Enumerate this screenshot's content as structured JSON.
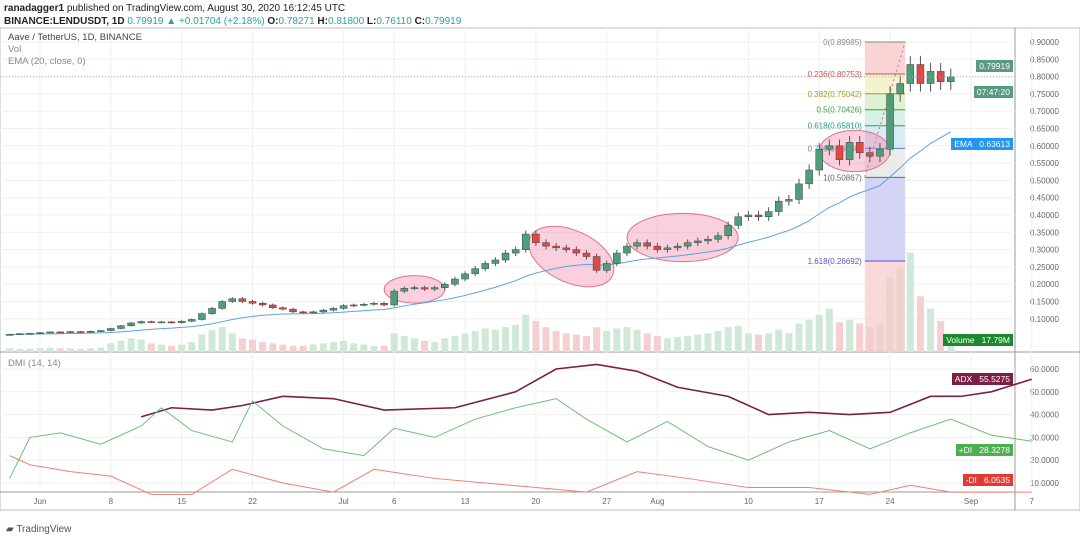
{
  "header": {
    "publisher": "ranadagger1",
    "published_text": "published on TradingView.com, August 30, 2020 16:12:45 UTC",
    "symbol": "BINANCE:LENDUSDT, 1D",
    "last": "0.79919",
    "change": "+0.01704 (+2.18%)",
    "o_label": "O:",
    "o": "0.78271",
    "h_label": "H:",
    "h": "0.81800",
    "l_label": "L:",
    "l": "0.76110",
    "c_label": "C:",
    "c": "0.79919"
  },
  "legend": {
    "title": "Aave / TetherUS, 1D, BINANCE",
    "vol": "Vol",
    "ema": "EMA (20, close, 0)",
    "dmi": "DMI (14, 14)"
  },
  "tags": {
    "price": "0.79919",
    "countdown": "07:47:20",
    "ema_label": "EMA",
    "ema": "0.63613",
    "volume_label": "Volume",
    "volume": "17.79M",
    "adx_label": "ADX",
    "adx": "55.5275",
    "pdi_label": "+DI",
    "pdi": "28.3278",
    "mdi_label": "-DI",
    "mdi": "6.0535"
  },
  "footer": {
    "brand": "TradingView"
  },
  "colors": {
    "up": "#4e9e7a",
    "down": "#e04848",
    "ema": "#5aa3e0",
    "adx": "#7b1f45",
    "pdi": "#6cc070",
    "mdi": "#f08070"
  },
  "chart_data": [
    {
      "type": "candlestick",
      "start_date": "2020-05-29",
      "end_date": "2020-08-30",
      "close": [
        0.055,
        0.057,
        0.058,
        0.06,
        0.062,
        0.061,
        0.063,
        0.062,
        0.064,
        0.066,
        0.072,
        0.08,
        0.088,
        0.092,
        0.09,
        0.091,
        0.089,
        0.093,
        0.098,
        0.115,
        0.13,
        0.15,
        0.158,
        0.15,
        0.145,
        0.14,
        0.132,
        0.128,
        0.12,
        0.118,
        0.12,
        0.125,
        0.13,
        0.138,
        0.14,
        0.142,
        0.145,
        0.14,
        0.18,
        0.188,
        0.19,
        0.186,
        0.19,
        0.2,
        0.215,
        0.23,
        0.245,
        0.26,
        0.27,
        0.29,
        0.3,
        0.345,
        0.32,
        0.31,
        0.305,
        0.3,
        0.29,
        0.28,
        0.24,
        0.26,
        0.29,
        0.31,
        0.32,
        0.31,
        0.3,
        0.305,
        0.31,
        0.32,
        0.325,
        0.33,
        0.34,
        0.37,
        0.395,
        0.4,
        0.395,
        0.41,
        0.44,
        0.445,
        0.49,
        0.53,
        0.59,
        0.6,
        0.56,
        0.61,
        0.58,
        0.57,
        0.59,
        0.75,
        0.78,
        0.835,
        0.78,
        0.815,
        0.785,
        0.79919
      ],
      "volume_m": [
        6,
        5,
        5,
        6,
        7,
        6,
        6,
        5,
        6,
        7,
        14,
        18,
        22,
        20,
        14,
        12,
        10,
        12,
        16,
        28,
        35,
        40,
        30,
        22,
        20,
        16,
        14,
        12,
        10,
        10,
        12,
        14,
        16,
        18,
        14,
        12,
        10,
        10,
        30,
        26,
        22,
        18,
        16,
        22,
        26,
        30,
        34,
        38,
        36,
        40,
        44,
        60,
        50,
        40,
        34,
        30,
        28,
        26,
        40,
        34,
        38,
        40,
        36,
        30,
        26,
        22,
        24,
        26,
        28,
        30,
        34,
        40,
        42,
        30,
        28,
        30,
        36,
        30,
        46,
        52,
        60,
        70,
        48,
        52,
        46,
        40,
        44,
        120,
        135,
        160,
        90,
        70,
        50,
        17.79
      ],
      "price_axis": {
        "min": 0.05,
        "max": 0.9,
        "ticks": [
          "0.90000",
          "0.85000",
          "0.80000",
          "0.75000",
          "0.70000",
          "0.65000",
          "0.60000",
          "0.55000",
          "0.50000",
          "0.45000",
          "0.40000",
          "0.35000",
          "0.30000",
          "0.25000",
          "0.20000",
          "0.15000",
          "0.10000"
        ]
      },
      "fib": [
        {
          "level": "0",
          "price": 0.89985
        },
        {
          "level": "0.236",
          "price": 0.80753
        },
        {
          "level": "0.382",
          "price": 0.75042
        },
        {
          "level": "0.5",
          "price": 0.70426
        },
        {
          "level": "0.618",
          "price": 0.6581
        },
        {
          "level": "0.786",
          "price": 0.5924
        },
        {
          "level": "1",
          "price": 0.50867
        },
        {
          "level": "1.618",
          "price": 0.26692
        }
      ],
      "fib_labels": [
        "0(0.89985)",
        "0.236(0.80753)",
        "0.382(0.75042)",
        "0.5(0.70426)",
        "0.618(0.65810)",
        "0.786(0.59240)",
        "1(0.50867)",
        "1.618(0.26692)"
      ],
      "highlights": [
        {
          "from": "2020-07-06",
          "to": "2020-07-10"
        },
        {
          "from": "2020-07-20",
          "to": "2020-07-27"
        },
        {
          "from": "2020-07-30",
          "to": "2020-08-08"
        },
        {
          "from": "2020-08-18",
          "to": "2020-08-23"
        }
      ]
    },
    {
      "type": "line",
      "title": "DMI (14, 14)",
      "yaxis": {
        "min": 0,
        "max": 65,
        "ticks": [
          "60.0000",
          "50.0000",
          "40.0000",
          "30.0000",
          "20.0000",
          "10.0000"
        ]
      },
      "series": [
        {
          "name": "ADX",
          "points": [
            [
              "2020-06-11",
              39
            ],
            [
              "2020-06-14",
              43
            ],
            [
              "2020-06-18",
              42
            ],
            [
              "2020-06-21",
              44
            ],
            [
              "2020-06-25",
              48
            ],
            [
              "2020-06-30",
              47
            ],
            [
              "2020-07-05",
              42
            ],
            [
              "2020-07-12",
              43
            ],
            [
              "2020-07-18",
              50
            ],
            [
              "2020-07-22",
              60
            ],
            [
              "2020-07-26",
              62
            ],
            [
              "2020-07-30",
              59
            ],
            [
              "2020-08-03",
              52
            ],
            [
              "2020-08-08",
              48
            ],
            [
              "2020-08-12",
              40
            ],
            [
              "2020-08-16",
              41
            ],
            [
              "2020-08-20",
              40
            ],
            [
              "2020-08-24",
              41
            ],
            [
              "2020-08-28",
              48
            ],
            [
              "2020-08-31",
              48
            ],
            [
              "2020-09-03",
              50
            ],
            [
              "2020-09-07",
              55.5
            ]
          ]
        },
        {
          "name": "+DI",
          "points": [
            [
              "2020-05-29",
              12
            ],
            [
              "2020-05-31",
              30
            ],
            [
              "2020-06-03",
              32
            ],
            [
              "2020-06-07",
              27
            ],
            [
              "2020-06-11",
              35
            ],
            [
              "2020-06-13",
              43
            ],
            [
              "2020-06-16",
              33
            ],
            [
              "2020-06-20",
              28
            ],
            [
              "2020-06-22",
              46
            ],
            [
              "2020-06-25",
              35
            ],
            [
              "2020-06-29",
              25
            ],
            [
              "2020-07-03",
              22
            ],
            [
              "2020-07-06",
              34
            ],
            [
              "2020-07-10",
              30
            ],
            [
              "2020-07-14",
              38
            ],
            [
              "2020-07-18",
              43
            ],
            [
              "2020-07-22",
              47
            ],
            [
              "2020-07-25",
              38
            ],
            [
              "2020-07-29",
              28
            ],
            [
              "2020-08-02",
              37
            ],
            [
              "2020-08-06",
              26
            ],
            [
              "2020-08-10",
              20
            ],
            [
              "2020-08-14",
              28
            ],
            [
              "2020-08-18",
              33
            ],
            [
              "2020-08-22",
              25
            ],
            [
              "2020-08-26",
              32
            ],
            [
              "2020-08-30",
              38
            ],
            [
              "2020-09-03",
              31
            ],
            [
              "2020-09-07",
              28.3
            ]
          ]
        },
        {
          "name": "-DI",
          "points": [
            [
              "2020-05-29",
              22
            ],
            [
              "2020-05-31",
              18
            ],
            [
              "2020-06-04",
              15
            ],
            [
              "2020-06-08",
              13
            ],
            [
              "2020-06-12",
              5
            ],
            [
              "2020-06-16",
              5
            ],
            [
              "2020-06-20",
              16
            ],
            [
              "2020-06-25",
              10
            ],
            [
              "2020-06-30",
              6
            ],
            [
              "2020-07-04",
              16
            ],
            [
              "2020-07-10",
              12
            ],
            [
              "2020-07-15",
              10
            ],
            [
              "2020-07-20",
              8
            ],
            [
              "2020-07-25",
              6
            ],
            [
              "2020-07-30",
              15
            ],
            [
              "2020-08-04",
              12
            ],
            [
              "2020-08-10",
              8
            ],
            [
              "2020-08-16",
              8
            ],
            [
              "2020-08-22",
              5
            ],
            [
              "2020-08-26",
              9
            ],
            [
              "2020-08-30",
              6
            ],
            [
              "2020-09-03",
              6
            ],
            [
              "2020-09-07",
              6
            ]
          ]
        }
      ]
    },
    {
      "type": "time_axis",
      "ticks": [
        [
          "2020-06-01",
          "Jun"
        ],
        [
          "2020-06-08",
          "8"
        ],
        [
          "2020-06-15",
          "15"
        ],
        [
          "2020-06-22",
          "22"
        ],
        [
          "2020-07-01",
          "Jul"
        ],
        [
          "2020-07-06",
          "6"
        ],
        [
          "2020-07-13",
          "13"
        ],
        [
          "2020-07-20",
          "20"
        ],
        [
          "2020-07-27",
          "27"
        ],
        [
          "2020-08-01",
          "Aug"
        ],
        [
          "2020-08-10",
          "10"
        ],
        [
          "2020-08-17",
          "17"
        ],
        [
          "2020-08-24",
          "24"
        ],
        [
          "2020-09-01",
          "Sep"
        ],
        [
          "2020-09-07",
          "7"
        ]
      ]
    }
  ]
}
